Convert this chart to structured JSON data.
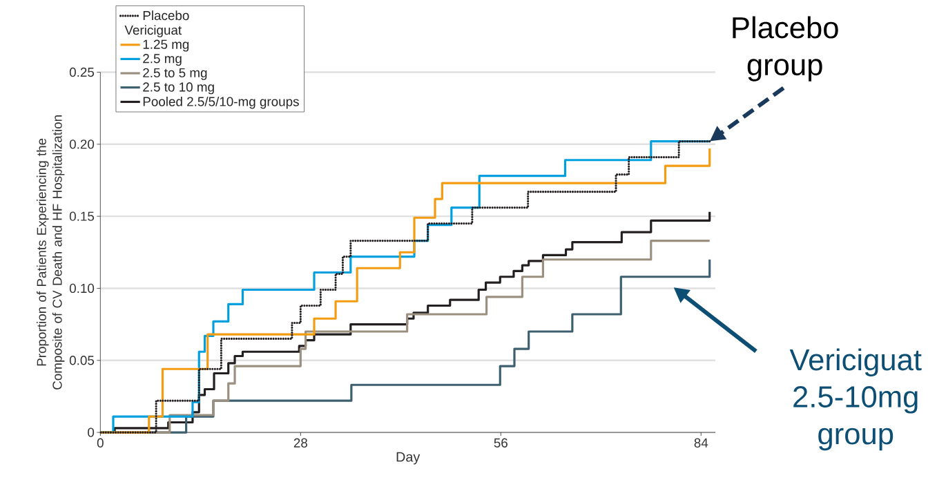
{
  "chart_data": {
    "type": "step",
    "xlabel": "Day",
    "ylabel": "Proportion of Patients Experiencing the Composite of CV Death and HF Hospitalization",
    "legend_title": "Vericiguat",
    "xlim": [
      0,
      86
    ],
    "xticks": [
      0,
      28,
      56,
      84
    ],
    "ylim": [
      0,
      0.25
    ],
    "yticks": [
      0,
      0.05,
      {
        "value": 0.1,
        "label": "0.10"
      },
      0.15,
      {
        "value": 0.2,
        "label": "0.20"
      },
      0.25
    ],
    "grid": "y",
    "legend": "top left",
    "marker": "none",
    "series": [
      {
        "name": "Placebo",
        "color": "#231f20",
        "line_style": "dotted",
        "x": [
          0,
          7.8,
          13.8,
          16.9,
          26.8,
          28.0,
          30.8,
          32.9,
          33.9,
          35.0,
          45.8,
          52.0,
          59.8,
          72.1,
          73.9,
          80.9,
          85.2
        ],
        "values": [
          0,
          0.022,
          0.044,
          0.065,
          0.076,
          0.088,
          0.099,
          0.11,
          0.122,
          0.133,
          0.145,
          0.156,
          0.167,
          0.179,
          0.191,
          0.202,
          0.202
        ]
      },
      {
        "name": "1.25 mg",
        "color": "#f39c12",
        "line_style": "solid",
        "x": [
          0,
          6.8,
          8.7,
          15.0,
          29.9,
          32.9,
          35.9,
          41.9,
          43.9,
          46.8,
          47.8,
          79.0,
          85.2
        ],
        "values": [
          0,
          0.011,
          0.044,
          0.068,
          0.079,
          0.091,
          0.114,
          0.125,
          0.149,
          0.162,
          0.173,
          0.185,
          0.197
        ]
      },
      {
        "name": "2.5 mg",
        "color": "#00a0df",
        "line_style": "solid",
        "x": [
          0,
          1.8,
          12.9,
          13.8,
          14.6,
          15.8,
          17.9,
          19.9,
          29.9,
          35.0,
          43.9,
          45.8,
          49.1,
          53.0,
          65.0,
          77.0,
          85.2
        ],
        "values": [
          0,
          0.011,
          0.021,
          0.056,
          0.067,
          0.077,
          0.089,
          0.099,
          0.111,
          0.122,
          0.133,
          0.144,
          0.156,
          0.178,
          0.189,
          0.202,
          0.202
        ]
      },
      {
        "name": "2.5 to 5 mg",
        "color": "#9b8f80",
        "line_style": "solid",
        "x": [
          0,
          9.7,
          15.8,
          17.9,
          18.8,
          28.0,
          28.7,
          42.9,
          54.0,
          59.0,
          61.9,
          77.0,
          85.2
        ],
        "values": [
          0,
          0.012,
          0.022,
          0.034,
          0.046,
          0.058,
          0.07,
          0.082,
          0.094,
          0.108,
          0.12,
          0.133,
          0.133
        ]
      },
      {
        "name": "2.5 to 10 mg",
        "color": "#3d5f6e",
        "line_style": "solid",
        "x": [
          0,
          12.0,
          15.8,
          35.1,
          55.9,
          57.9,
          59.9,
          66.0,
          72.8,
          85.2
        ],
        "values": [
          0,
          0.011,
          0.022,
          0.033,
          0.046,
          0.058,
          0.07,
          0.082,
          0.108,
          0.12
        ]
      },
      {
        "name": "Pooled 2.5/5/10-mg groups",
        "color": "#231f20",
        "line_style": "solid",
        "x": [
          0,
          2.0,
          9.5,
          12.9,
          13.8,
          14.6,
          15.9,
          17.9,
          18.8,
          19.9,
          27.8,
          28.7,
          29.9,
          35.0,
          42.9,
          43.8,
          45.8,
          48.9,
          52.9,
          53.9,
          55.9,
          57.8,
          59.0,
          59.9,
          61.9,
          65.1,
          66.0,
          72.9,
          77.0,
          85.2
        ],
        "values": [
          0,
          0.003,
          0.007,
          0.014,
          0.026,
          0.03,
          0.041,
          0.048,
          0.053,
          0.056,
          0.06,
          0.064,
          0.068,
          0.075,
          0.079,
          0.083,
          0.088,
          0.092,
          0.099,
          0.104,
          0.108,
          0.112,
          0.116,
          0.119,
          0.123,
          0.127,
          0.132,
          0.139,
          0.147,
          0.153
        ]
      }
    ],
    "annotations": [
      {
        "text": "Placebo group",
        "x": 85.2,
        "y": 0.202
      },
      "Vericiguat 2.5-10mg group"
    ]
  }
}
